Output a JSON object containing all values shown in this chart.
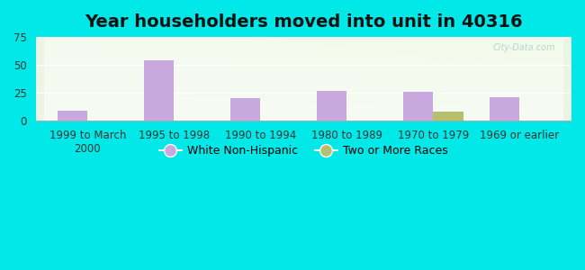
{
  "title": "Year householders moved into unit in 40316",
  "categories": [
    "1999 to March\n2000",
    "1995 to 1998",
    "1990 to 1994",
    "1980 to 1989",
    "1970 to 1979",
    "1969 or earlier"
  ],
  "white_non_hispanic": [
    9,
    54,
    20,
    27,
    26,
    21
  ],
  "two_or_more_races": [
    0,
    0,
    0,
    0,
    8,
    0
  ],
  "white_color": "#c9a8e0",
  "two_races_color": "#b5bf6e",
  "background_outer": "#00e8e8",
  "ylim": [
    0,
    75
  ],
  "yticks": [
    0,
    25,
    50,
    75
  ],
  "bar_width": 0.35,
  "title_fontsize": 14,
  "tick_fontsize": 8.5,
  "legend_fontsize": 9,
  "watermark": "City-Data.com"
}
